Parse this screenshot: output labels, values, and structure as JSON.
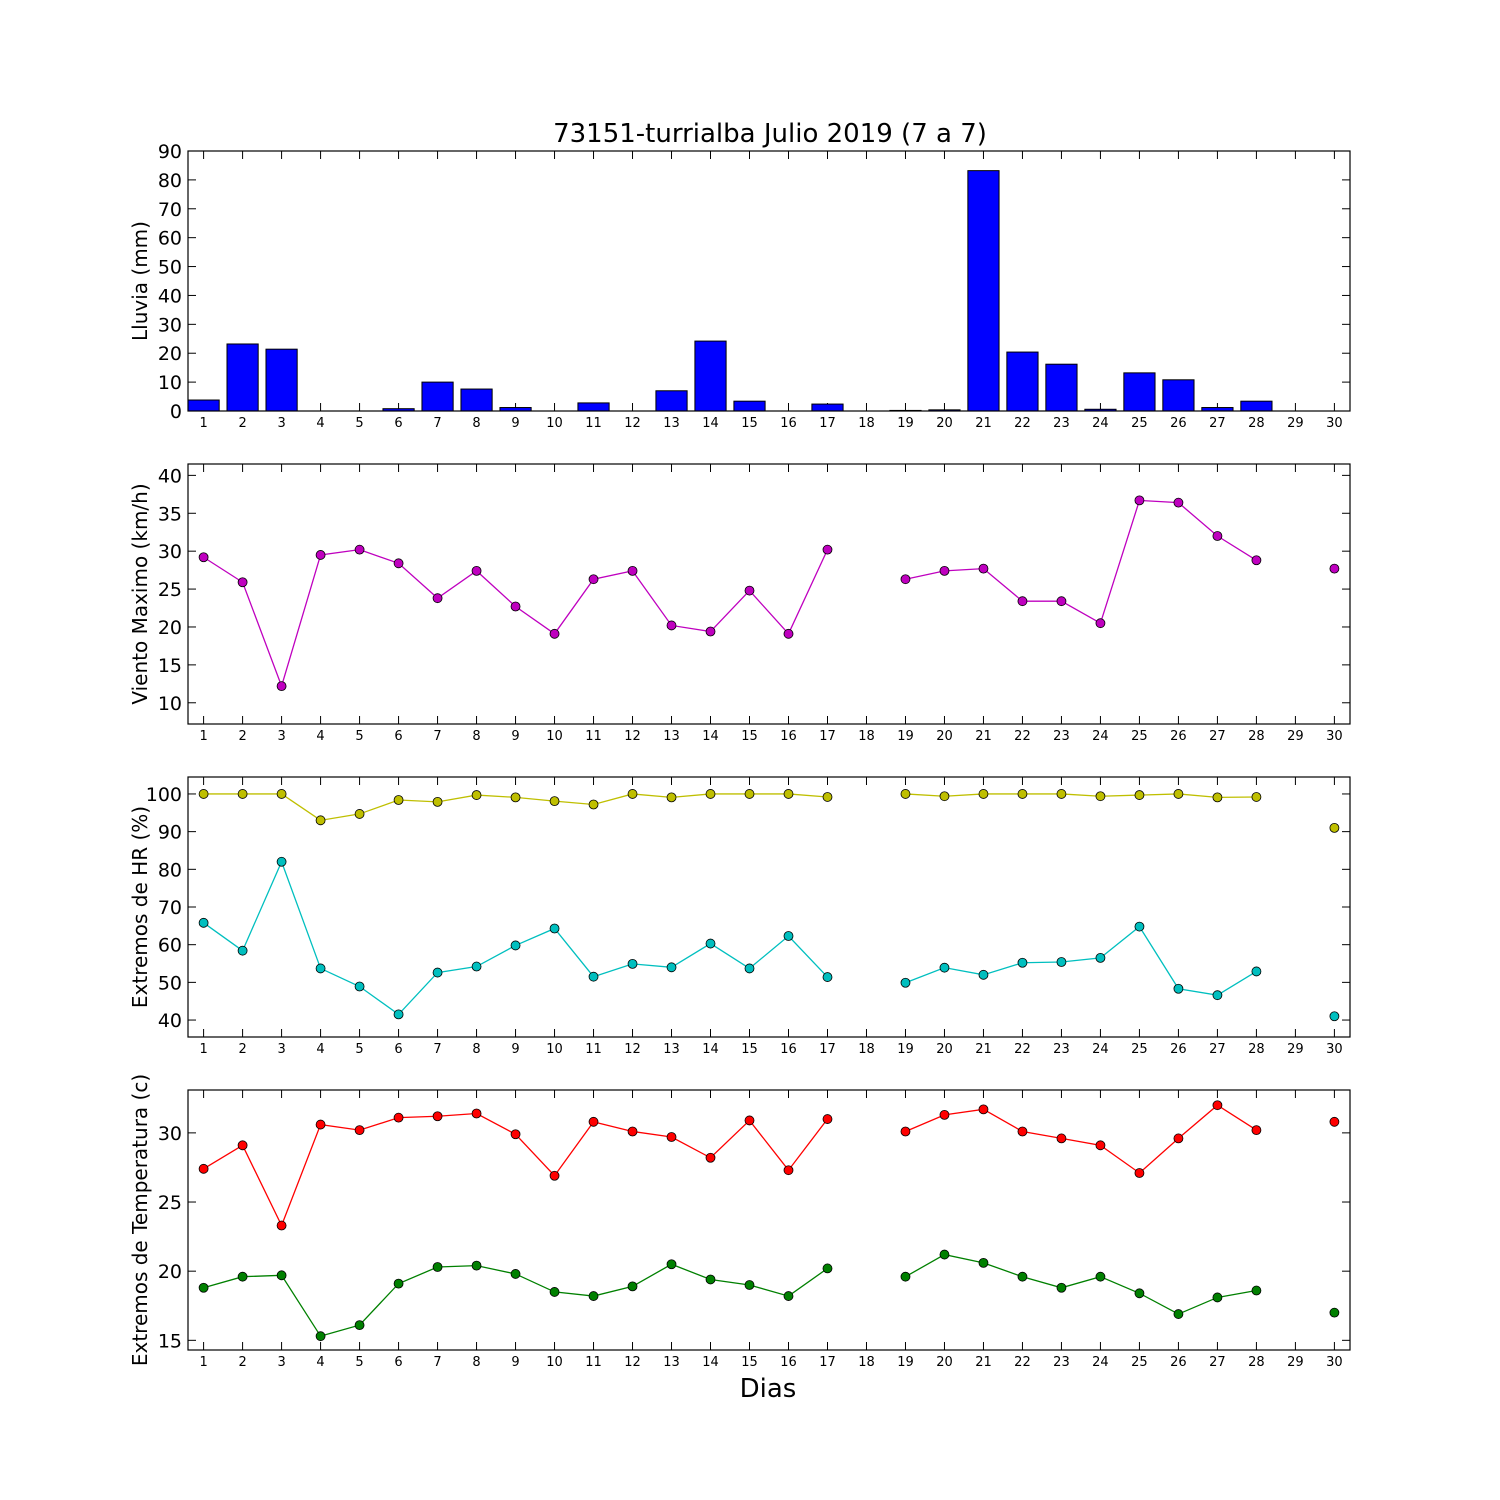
{
  "title": "73151-turrialba Julio 2019  (7 a 7)",
  "xlabel": "Dias",
  "days": [
    1,
    2,
    3,
    4,
    5,
    6,
    7,
    8,
    9,
    10,
    11,
    12,
    13,
    14,
    15,
    16,
    17,
    18,
    19,
    20,
    21,
    22,
    23,
    24,
    25,
    26,
    27,
    28,
    29,
    30
  ],
  "colors": {
    "lluvia": "#0000ff",
    "viento": "#bf00bf",
    "hr_max": "#bfbf00",
    "hr_min": "#00bfbf",
    "temp_max": "#ff0000",
    "temp_min": "#008000"
  },
  "chart_data": [
    {
      "type": "bar",
      "ylabel": "Lluvia (mm)",
      "ylim": [
        0,
        90
      ],
      "yticks": [
        0,
        10,
        20,
        30,
        40,
        50,
        60,
        70,
        80,
        90
      ],
      "categories": [
        1,
        2,
        3,
        4,
        5,
        6,
        7,
        8,
        9,
        10,
        11,
        12,
        13,
        14,
        15,
        16,
        17,
        18,
        19,
        20,
        21,
        22,
        23,
        24,
        25,
        26,
        27,
        28,
        29,
        30
      ],
      "values": [
        3.8,
        23.2,
        21.4,
        0,
        0,
        0.8,
        10,
        7.6,
        1.2,
        0,
        2.8,
        0,
        7,
        24.2,
        3.4,
        0,
        2.4,
        0,
        0.2,
        0.4,
        83.2,
        20.4,
        16.2,
        0.6,
        13.2,
        10.8,
        1.2,
        3.4,
        0,
        0
      ]
    },
    {
      "type": "line",
      "ylabel": "Viento Maximo (km/h)",
      "ylim": [
        7.2,
        41.5
      ],
      "yticks": [
        10,
        15,
        20,
        25,
        30,
        35,
        40
      ],
      "series": [
        {
          "values": [
            29.2,
            25.9,
            12.2,
            29.5,
            30.2,
            28.4,
            23.8,
            27.4,
            22.7,
            19.1,
            26.3,
            27.4,
            20.2,
            19.4,
            24.8,
            19.1,
            30.2,
            null,
            26.3,
            27.4,
            27.7,
            23.4,
            23.4,
            20.5,
            36.7,
            36.4,
            32.0,
            28.8,
            null,
            27.7
          ],
          "color_key": "viento"
        }
      ]
    },
    {
      "type": "line",
      "ylabel": "Extremos de HR (%)",
      "ylim": [
        35.5,
        104.5
      ],
      "yticks": [
        40,
        50,
        60,
        70,
        80,
        90,
        100
      ],
      "series": [
        {
          "values": [
            100,
            100,
            100,
            93,
            94.7,
            98.4,
            97.9,
            99.7,
            99.1,
            98.1,
            97.2,
            100,
            99.1,
            100,
            100,
            100,
            99.2,
            null,
            100,
            99.4,
            100,
            100,
            100,
            99.4,
            99.7,
            100,
            99.1,
            99.2,
            null,
            91
          ],
          "color_key": "hr_max"
        },
        {
          "values": [
            65.8,
            58.4,
            82,
            53.7,
            48.9,
            41.5,
            52.6,
            54.2,
            59.8,
            64.3,
            51.5,
            54.9,
            54,
            60.3,
            53.7,
            62.3,
            51.4,
            null,
            49.9,
            53.9,
            52,
            55.2,
            55.4,
            56.5,
            64.8,
            48.3,
            46.6,
            52.9,
            null,
            41
          ],
          "color_key": "hr_min"
        }
      ]
    },
    {
      "type": "line",
      "ylabel": "Extremos de Temperatura (c)",
      "ylim": [
        14.3,
        33.1
      ],
      "yticks": [
        15,
        20,
        25,
        30
      ],
      "series": [
        {
          "values": [
            27.4,
            29.1,
            23.3,
            30.6,
            30.2,
            31.1,
            31.2,
            31.4,
            29.9,
            26.9,
            30.8,
            30.1,
            29.7,
            28.2,
            30.9,
            27.3,
            31,
            null,
            30.1,
            31.3,
            31.7,
            30.1,
            29.6,
            29.1,
            27.1,
            29.6,
            32,
            30.2,
            null,
            30.8
          ],
          "color_key": "temp_max"
        },
        {
          "values": [
            18.8,
            19.6,
            19.7,
            15.3,
            16.1,
            19.1,
            20.3,
            20.4,
            19.8,
            18.5,
            18.2,
            18.9,
            20.5,
            19.4,
            19,
            18.2,
            20.2,
            null,
            19.6,
            21.2,
            20.6,
            19.6,
            18.8,
            19.6,
            18.4,
            16.9,
            18.1,
            18.6,
            null,
            17
          ],
          "color_key": "temp_min"
        }
      ]
    }
  ]
}
